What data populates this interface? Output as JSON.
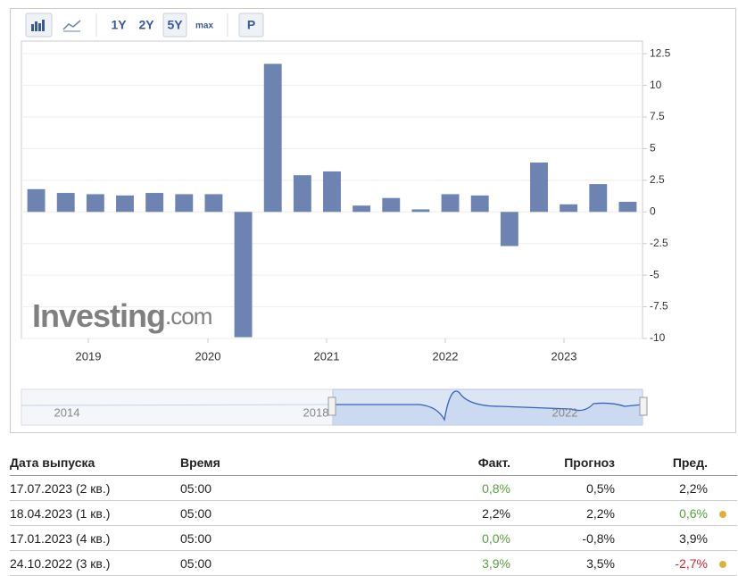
{
  "toolbar": {
    "ranges": [
      "1Y",
      "2Y",
      "5Y",
      "max"
    ],
    "active": "5Y",
    "p_button": "P"
  },
  "chart_data": {
    "type": "bar",
    "color": "#6d83b2",
    "categories": [
      null,
      null,
      null,
      null,
      null,
      null,
      null,
      null,
      null,
      null,
      null,
      null,
      null,
      null,
      null,
      null,
      null,
      null,
      null,
      null,
      null
    ],
    "values": [
      1.8,
      1.5,
      1.4,
      1.3,
      1.5,
      1.4,
      1.4,
      -9.9,
      11.7,
      2.9,
      3.2,
      0.5,
      1.1,
      0.2,
      1.4,
      1.3,
      -2.7,
      3.9,
      0.6,
      2.2,
      0.8
    ],
    "year_labels": [
      "2019",
      "2020",
      "2021",
      "2022",
      "2023"
    ],
    "ylim": [
      -10,
      13.5
    ],
    "yticks": [
      12.5,
      10,
      7.5,
      5,
      2.5,
      0,
      -2.5,
      -5,
      -7.5,
      -10
    ],
    "grid": true,
    "watermark": {
      "main": "Investing",
      "suffix": ".com"
    },
    "navigator_labels": [
      "2014",
      "2018",
      "2022"
    ]
  },
  "table": {
    "header": [
      "Дата выпуска",
      "Время",
      "Факт.",
      "Прогноз",
      "Пред."
    ],
    "rows": [
      {
        "date": "17.07.2023 (2 кв.)",
        "time": "05:00",
        "actual": "0,8%",
        "actual_color": "#58a13f",
        "forecast": "0,5%",
        "previous": "2,2%",
        "previous_color": "#222",
        "dot": false
      },
      {
        "date": "18.04.2023 (1 кв.)",
        "time": "05:00",
        "actual": "2,2%",
        "actual_color": "#222",
        "forecast": "2,2%",
        "previous": "0,6%",
        "previous_color": "#58a13f",
        "dot": true
      },
      {
        "date": "17.01.2023 (4 кв.)",
        "time": "05:00",
        "actual": "0,0%",
        "actual_color": "#58a13f",
        "forecast": "-0,8%",
        "previous": "3,9%",
        "previous_color": "#222",
        "dot": false
      },
      {
        "date": "24.10.2022 (3 кв.)",
        "time": "05:00",
        "actual": "3,9%",
        "actual_color": "#58a13f",
        "forecast": "3,5%",
        "previous": "-2,7%",
        "previous_color": "#d0262e",
        "dot": true
      }
    ]
  }
}
